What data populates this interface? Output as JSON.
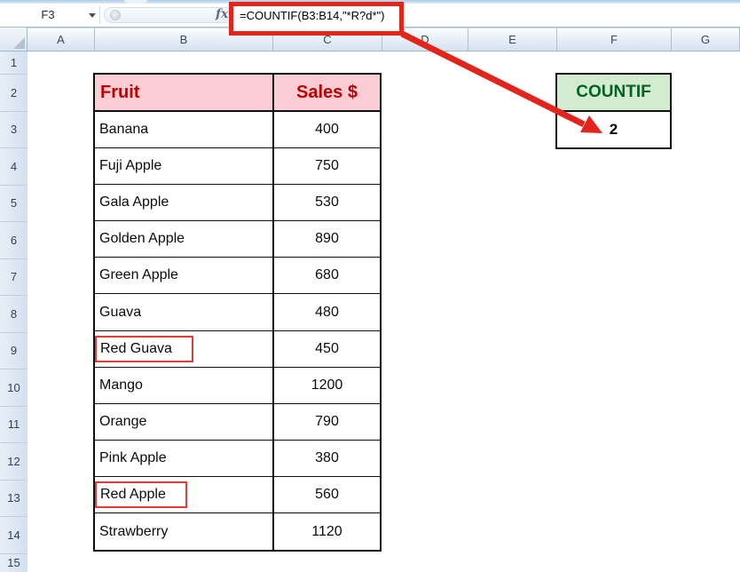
{
  "formula_bar": {
    "cell_reference": "F3",
    "fx_label": "fx",
    "formula": "=COUNTIF(B3:B14,\"*R?d*\")"
  },
  "column_headers": [
    "A",
    "B",
    "C",
    "D",
    "E",
    "F",
    "G"
  ],
  "row_headers": [
    "1",
    "2",
    "3",
    "4",
    "5",
    "6",
    "7",
    "8",
    "9",
    "10",
    "11",
    "12",
    "13",
    "14",
    "15"
  ],
  "fruit_table": {
    "header": {
      "fruit": "Fruit",
      "sales": "Sales $"
    },
    "rows": [
      {
        "fruit": "Banana",
        "sales": "400",
        "boxed": false
      },
      {
        "fruit": "Fuji Apple",
        "sales": "750",
        "boxed": false
      },
      {
        "fruit": "Gala Apple",
        "sales": "530",
        "boxed": false
      },
      {
        "fruit": "Golden Apple",
        "sales": "890",
        "boxed": false
      },
      {
        "fruit": "Green Apple",
        "sales": "680",
        "boxed": false
      },
      {
        "fruit": "Guava",
        "sales": "480",
        "boxed": false
      },
      {
        "fruit": "Red Guava",
        "sales": "450",
        "boxed": true
      },
      {
        "fruit": "Mango",
        "sales": "1200",
        "boxed": false
      },
      {
        "fruit": "Orange",
        "sales": "790",
        "boxed": false
      },
      {
        "fruit": "Pink Apple",
        "sales": "380",
        "boxed": false
      },
      {
        "fruit": "Red Apple",
        "sales": "560",
        "boxed": true
      },
      {
        "fruit": "Strawberry",
        "sales": "1120",
        "boxed": false
      }
    ]
  },
  "countif_box": {
    "label": "COUNTIF",
    "value": "2"
  },
  "colors": {
    "table_header_bg": "#F9CDD3",
    "table_header_text": "#C00000",
    "countif_bg": "#D2EBD1",
    "countif_text": "#006420",
    "annotation_red": "#E3241B"
  }
}
